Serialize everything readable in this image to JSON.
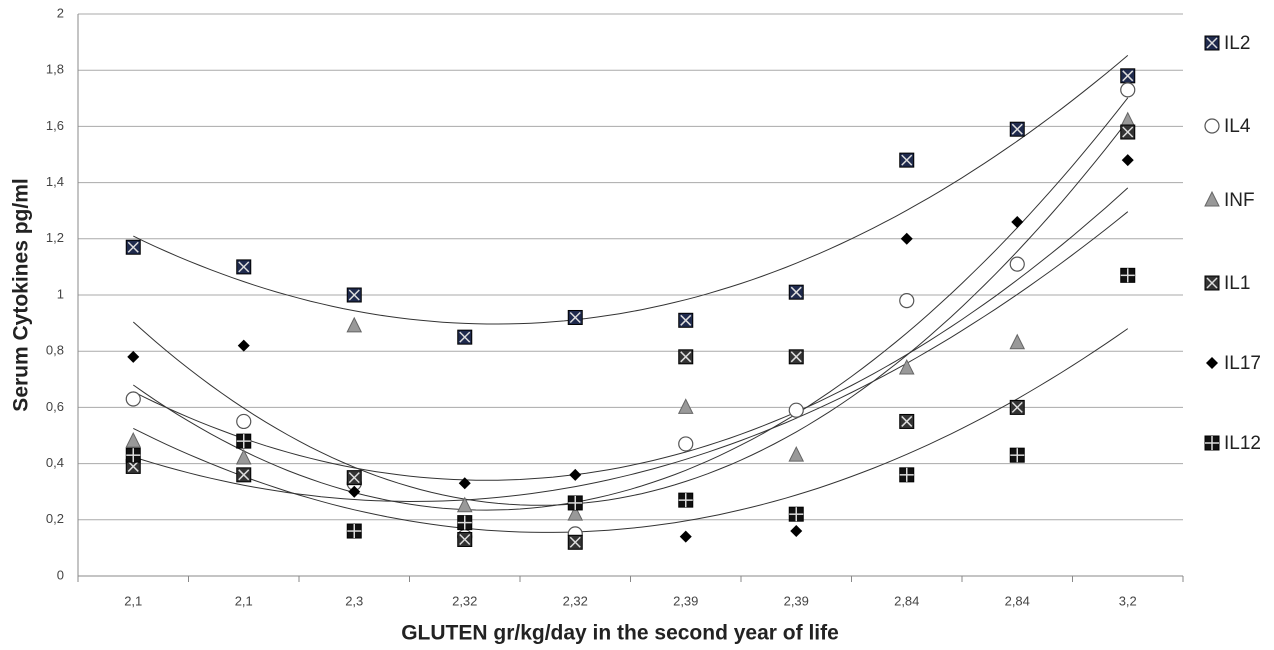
{
  "chart_data": {
    "type": "scatter",
    "xlabel": "GLUTEN gr/kg/day in the second year of life",
    "ylabel": "Serum Cytokines pg/ml",
    "categories": [
      "2,1",
      "2,1",
      "2,3",
      "2,32",
      "2,32",
      "2,39",
      "2,39",
      "2,84",
      "2,84",
      "3,2"
    ],
    "ylim": [
      0,
      2
    ],
    "yticks": [
      0,
      {
        "value": 0.2,
        "label": "0,2"
      },
      {
        "value": 0.4,
        "label": "0,4"
      },
      {
        "value": 0.6,
        "label": "0,6"
      },
      {
        "value": 0.8,
        "label": "0,8"
      },
      1,
      {
        "value": 1.2,
        "label": "1,2"
      },
      {
        "value": 1.4,
        "label": "1,4"
      },
      {
        "value": 1.6,
        "label": "1,6"
      },
      {
        "value": 1.8,
        "label": "1,8"
      },
      2
    ],
    "grid": true,
    "trendline": "polynomial-2",
    "legend": "right",
    "series": [
      {
        "name": "IL2",
        "color": "#1f2a4d",
        "marker": "square-x",
        "values": [
          1.17,
          1.1,
          1.0,
          0.85,
          0.92,
          0.91,
          1.01,
          1.48,
          1.59,
          1.78
        ]
      },
      {
        "name": "IL4",
        "color": "#ffffff",
        "marker": "circle",
        "values": [
          0.63,
          0.55,
          0.33,
          0.14,
          0.15,
          0.47,
          0.59,
          0.98,
          1.11,
          1.73
        ]
      },
      {
        "name": "INF",
        "color": "#999999",
        "marker": "triangle",
        "values": [
          0.48,
          0.42,
          0.89,
          0.25,
          0.22,
          0.6,
          0.43,
          0.74,
          0.83,
          1.62
        ]
      },
      {
        "name": "IL1",
        "color": "#333333",
        "marker": "square-x",
        "values": [
          0.39,
          0.36,
          0.35,
          0.13,
          0.12,
          0.78,
          0.78,
          0.55,
          0.6,
          1.58
        ]
      },
      {
        "name": "IL17",
        "color": "#000000",
        "marker": "diamond",
        "values": [
          0.78,
          0.82,
          0.3,
          0.33,
          0.36,
          0.14,
          0.16,
          1.2,
          1.26,
          1.48
        ]
      },
      {
        "name": "IL12",
        "color": "#111111",
        "marker": "square-plus",
        "values": [
          0.43,
          0.48,
          0.16,
          0.19,
          0.26,
          0.27,
          0.22,
          0.36,
          0.43,
          1.07
        ]
      }
    ]
  }
}
